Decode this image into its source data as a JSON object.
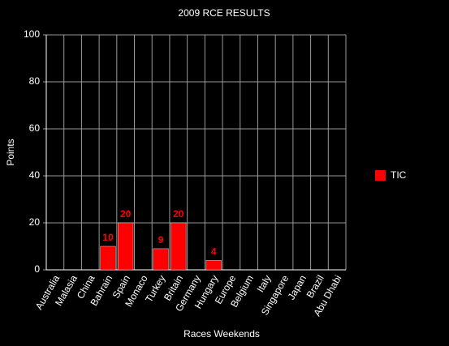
{
  "chart_data": {
    "type": "bar",
    "title": "2009 RCE RESULTS",
    "x_label": "Races Weekends",
    "y_label": "Points",
    "categories": [
      "Australia",
      "Malasia",
      "China",
      "Bahrain",
      "Spain",
      "Monaco",
      "Turkey",
      "Britain",
      "Germany",
      "Hungary",
      "Europe",
      "Belgium",
      "Italy",
      "Singapore",
      "Japan",
      "Brazil",
      "Abu Dhabi"
    ],
    "series": [
      {
        "name": "TIC",
        "color": "#ff0000",
        "values": [
          0,
          0,
          0,
          10,
          20,
          0,
          9,
          20,
          0,
          4,
          0,
          0,
          0,
          0,
          0,
          0,
          0
        ]
      }
    ],
    "ylim": [
      0,
      100
    ],
    "yticks": [
      0,
      20,
      40,
      60,
      80,
      100
    ],
    "grid": true,
    "legend": "right"
  }
}
